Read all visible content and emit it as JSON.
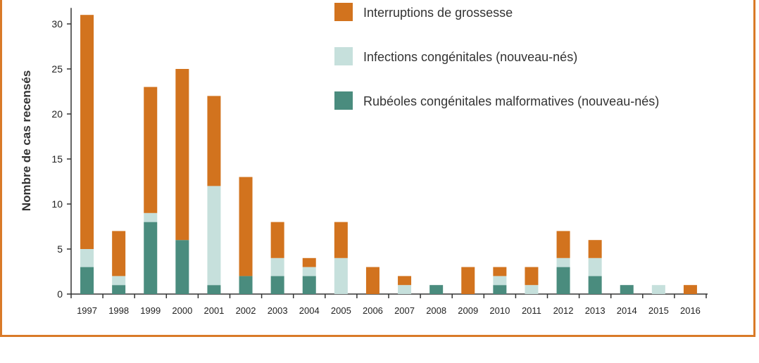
{
  "chart_data": {
    "type": "bar",
    "stacked": true,
    "title": "",
    "xlabel": "",
    "ylabel": "Nombre de cas recensés",
    "ylim": [
      0,
      31
    ],
    "yticks": [
      0,
      5,
      10,
      15,
      20,
      25,
      30
    ],
    "grid": false,
    "legend_position": "top-right",
    "categories": [
      "1997",
      "1998",
      "1999",
      "2000",
      "2001",
      "2002",
      "2003",
      "2004",
      "2005",
      "2006",
      "2007",
      "2008",
      "2009",
      "2010",
      "2011",
      "2012",
      "2013",
      "2014",
      "2015",
      "2016"
    ],
    "series": [
      {
        "name": "Rubéoles congénitales malformatives (nouveau-nés)",
        "color": "#4a8c7e",
        "values": [
          3,
          1,
          8,
          6,
          1,
          2,
          2,
          2,
          0,
          0,
          0,
          1,
          0,
          1,
          0,
          3,
          2,
          1,
          0,
          0
        ]
      },
      {
        "name": "Infections congénitales (nouveau-nés)",
        "color": "#c6e0dc",
        "values": [
          2,
          1,
          1,
          0,
          11,
          0,
          2,
          1,
          4,
          0,
          1,
          0,
          0,
          1,
          1,
          1,
          2,
          0,
          1,
          0
        ]
      },
      {
        "name": "Interruptions de grossesse",
        "color": "#d2731e",
        "values": [
          26,
          5,
          14,
          19,
          10,
          11,
          4,
          1,
          4,
          3,
          1,
          0,
          3,
          1,
          2,
          3,
          2,
          0,
          0,
          1
        ]
      }
    ]
  }
}
